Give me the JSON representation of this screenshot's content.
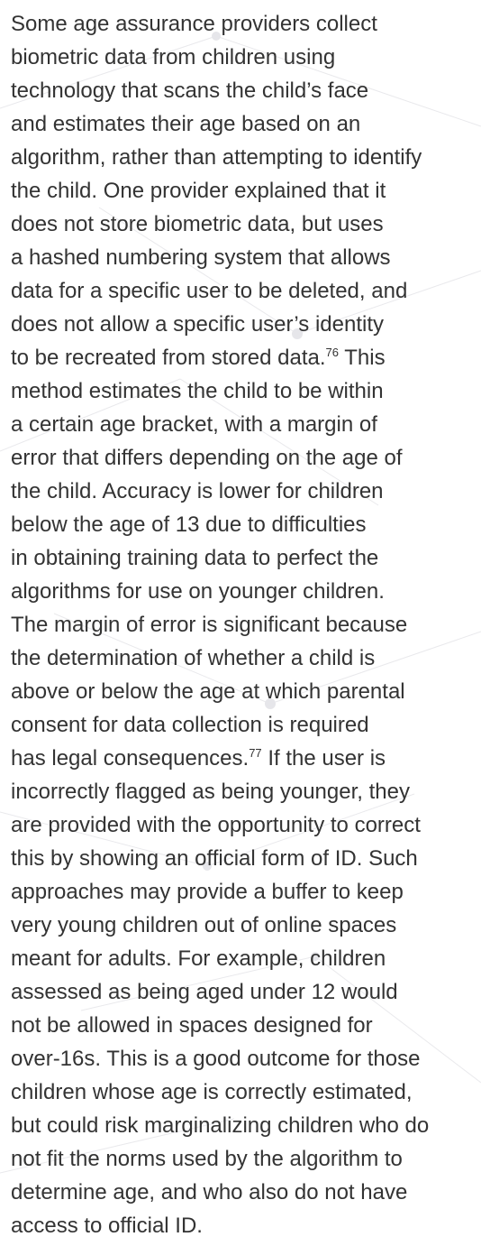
{
  "paragraph": {
    "lines": [
      {
        "text": "Some age assurance providers collect"
      },
      {
        "text": "biometric data from children using"
      },
      {
        "text": "technology that scans the child’s face"
      },
      {
        "text": "and estimates their age based on an"
      },
      {
        "text": "algorithm, rather than attempting to identify"
      },
      {
        "text": "the child. One provider explained that it"
      },
      {
        "text": "does not store biometric data, but uses"
      },
      {
        "text": "a hashed numbering system that allows"
      },
      {
        "text": "data for a specific user to be deleted, and"
      },
      {
        "text": "does not allow a specific user’s identity"
      },
      {
        "text": "to be recreated from stored data.",
        "sup": "76",
        "after": " This"
      },
      {
        "text": "method estimates the child to be within"
      },
      {
        "text": "a certain age bracket, with a margin of"
      },
      {
        "text": "error that differs depending on the age of"
      },
      {
        "text": "the child. Accuracy is lower for children"
      },
      {
        "text": "below the age of 13 due to difficulties"
      },
      {
        "text": "in obtaining training data to perfect the"
      },
      {
        "text": "algorithms for use on younger children."
      },
      {
        "text": "The margin of error is significant because"
      },
      {
        "text": "the determination of whether a child is"
      },
      {
        "text": "above or below the age at which parental"
      },
      {
        "text": "consent for data collection is required"
      },
      {
        "text": "has legal consequences.",
        "sup": "77",
        "after": " If the user is"
      },
      {
        "text": "incorrectly flagged as being younger, they"
      },
      {
        "text": "are provided with the opportunity to correct"
      },
      {
        "text": "this by showing an official form of ID. Such"
      },
      {
        "text": "approaches may provide a buffer to keep"
      },
      {
        "text": "very young children out of online spaces"
      },
      {
        "text": "meant for adults. For example, children"
      },
      {
        "text": "assessed as being aged under 12 would"
      },
      {
        "text": "not be allowed in spaces designed for"
      },
      {
        "text": "over-16s. This is a good outcome for those"
      },
      {
        "text": "children whose age is correctly estimated,"
      },
      {
        "text": "but could risk marginalizing children who do"
      },
      {
        "text": "not fit the norms used by the algorithm to"
      },
      {
        "text": "determine age, and who also do not have"
      },
      {
        "text": "access to official ID."
      }
    ]
  }
}
